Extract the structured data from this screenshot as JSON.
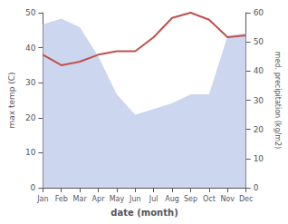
{
  "chart_data": {
    "type": "line",
    "categories": [
      "Jan",
      "Feb",
      "Mar",
      "Apr",
      "May",
      "Jun",
      "Jul",
      "Aug",
      "Sep",
      "Oct",
      "Nov",
      "Dec"
    ],
    "xlabel": "date (month)",
    "ylabel": "max temp (C)",
    "y2label": "med. precipitation (kg/m2)",
    "series": [
      {
        "type": "area",
        "axis": "y2",
        "color": "#b8c4e8",
        "values": [
          56,
          58,
          55,
          45,
          32,
          25,
          27,
          29,
          32,
          32,
          52,
          53
        ]
      },
      {
        "type": "line",
        "color": "#c0504d",
        "values": [
          38.0,
          35.0,
          36.0,
          38.0,
          39.0,
          39.0,
          43.0,
          48.5,
          50.0,
          48.0,
          43.0,
          43.5
        ]
      }
    ],
    "ylim": [
      0,
      50
    ],
    "yticks": [
      0,
      10,
      20,
      30,
      40,
      50
    ],
    "y2lim": [
      0,
      60
    ],
    "y2ticks": [
      0,
      10,
      20,
      30,
      40,
      50,
      60
    ],
    "grid": false
  }
}
